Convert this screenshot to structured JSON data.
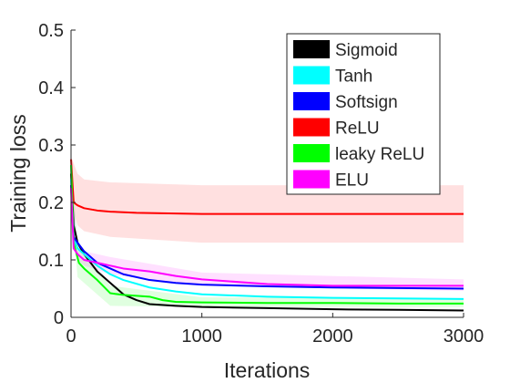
{
  "chart_data": {
    "type": "line",
    "title": "",
    "xlabel": "Iterations",
    "ylabel": "Training loss",
    "xlim": [
      0,
      3000
    ],
    "ylim": [
      0,
      0.5
    ],
    "xticks": [
      0,
      1000,
      2000,
      3000
    ],
    "xtick_labels": [
      "0",
      "1000",
      "2000",
      "3000"
    ],
    "yticks": [
      0,
      0.1,
      0.2,
      0.3,
      0.4,
      0.5
    ],
    "ytick_labels": [
      "0",
      "0.1",
      "0.2",
      "0.3",
      "0.4",
      "0.5"
    ],
    "grid": false,
    "legend_position": "top-right",
    "series": [
      {
        "name": "Sigmoid",
        "color": "#000000",
        "x": [
          0,
          20,
          50,
          100,
          150,
          200,
          300,
          400,
          500,
          600,
          800,
          1000,
          1500,
          2000,
          2500,
          3000
        ],
        "y": [
          0.25,
          0.16,
          0.13,
          0.11,
          0.095,
          0.08,
          0.06,
          0.04,
          0.03,
          0.023,
          0.02,
          0.018,
          0.016,
          0.014,
          0.013,
          0.012
        ]
      },
      {
        "name": "Tanh",
        "color": "#00ffff",
        "x": [
          0,
          20,
          50,
          100,
          200,
          300,
          400,
          600,
          800,
          1000,
          1500,
          2000,
          2500,
          3000
        ],
        "y": [
          0.24,
          0.14,
          0.12,
          0.11,
          0.09,
          0.075,
          0.065,
          0.052,
          0.045,
          0.04,
          0.036,
          0.034,
          0.033,
          0.032
        ]
      },
      {
        "name": "Softsign",
        "color": "#0000ff",
        "x": [
          0,
          20,
          50,
          100,
          200,
          300,
          400,
          600,
          800,
          1000,
          1500,
          2000,
          2500,
          3000
        ],
        "y": [
          0.23,
          0.14,
          0.13,
          0.115,
          0.095,
          0.085,
          0.075,
          0.065,
          0.06,
          0.057,
          0.054,
          0.052,
          0.051,
          0.05
        ]
      },
      {
        "name": "ReLU",
        "color": "#ff0000",
        "x": [
          0,
          20,
          50,
          100,
          200,
          300,
          500,
          1000,
          1500,
          2000,
          2500,
          3000
        ],
        "y": [
          0.275,
          0.2,
          0.195,
          0.19,
          0.186,
          0.184,
          0.182,
          0.18,
          0.18,
          0.18,
          0.18,
          0.18
        ]
      },
      {
        "name": "leaky ReLU",
        "color": "#00ff00",
        "x": [
          0,
          20,
          60,
          100,
          200,
          300,
          400,
          600,
          700,
          800,
          1000,
          1500,
          2000,
          2500,
          3000
        ],
        "y": [
          0.265,
          0.13,
          0.095,
          0.085,
          0.065,
          0.042,
          0.039,
          0.036,
          0.03,
          0.027,
          0.026,
          0.025,
          0.025,
          0.024,
          0.024
        ]
      },
      {
        "name": "ELU",
        "color": "#ff00ff",
        "x": [
          0,
          20,
          50,
          100,
          200,
          300,
          400,
          600,
          800,
          1000,
          1500,
          2000,
          2500,
          3000
        ],
        "y": [
          0.225,
          0.12,
          0.11,
          0.1,
          0.095,
          0.09,
          0.085,
          0.08,
          0.072,
          0.066,
          0.058,
          0.055,
          0.055,
          0.055
        ]
      }
    ],
    "bands": [
      {
        "series": "ReLU",
        "color": "#ff0000",
        "x": [
          0,
          50,
          100,
          300,
          1000,
          3000
        ],
        "lower": [
          0.2,
          0.16,
          0.15,
          0.14,
          0.13,
          0.13
        ],
        "upper": [
          0.28,
          0.25,
          0.24,
          0.235,
          0.23,
          0.23
        ]
      },
      {
        "series": "leaky ReLU",
        "color": "#00ff00",
        "x": [
          0,
          50,
          100,
          300,
          1000,
          3000
        ],
        "lower": [
          0.2,
          0.07,
          0.06,
          0.02,
          0.018,
          0.018
        ],
        "upper": [
          0.28,
          0.13,
          0.11,
          0.055,
          0.035,
          0.032
        ]
      },
      {
        "series": "ELU",
        "color": "#ff00ff",
        "x": [
          0,
          50,
          100,
          300,
          1000,
          3000
        ],
        "lower": [
          0.18,
          0.1,
          0.09,
          0.075,
          0.055,
          0.046
        ],
        "upper": [
          0.25,
          0.13,
          0.115,
          0.105,
          0.078,
          0.066
        ]
      }
    ]
  }
}
